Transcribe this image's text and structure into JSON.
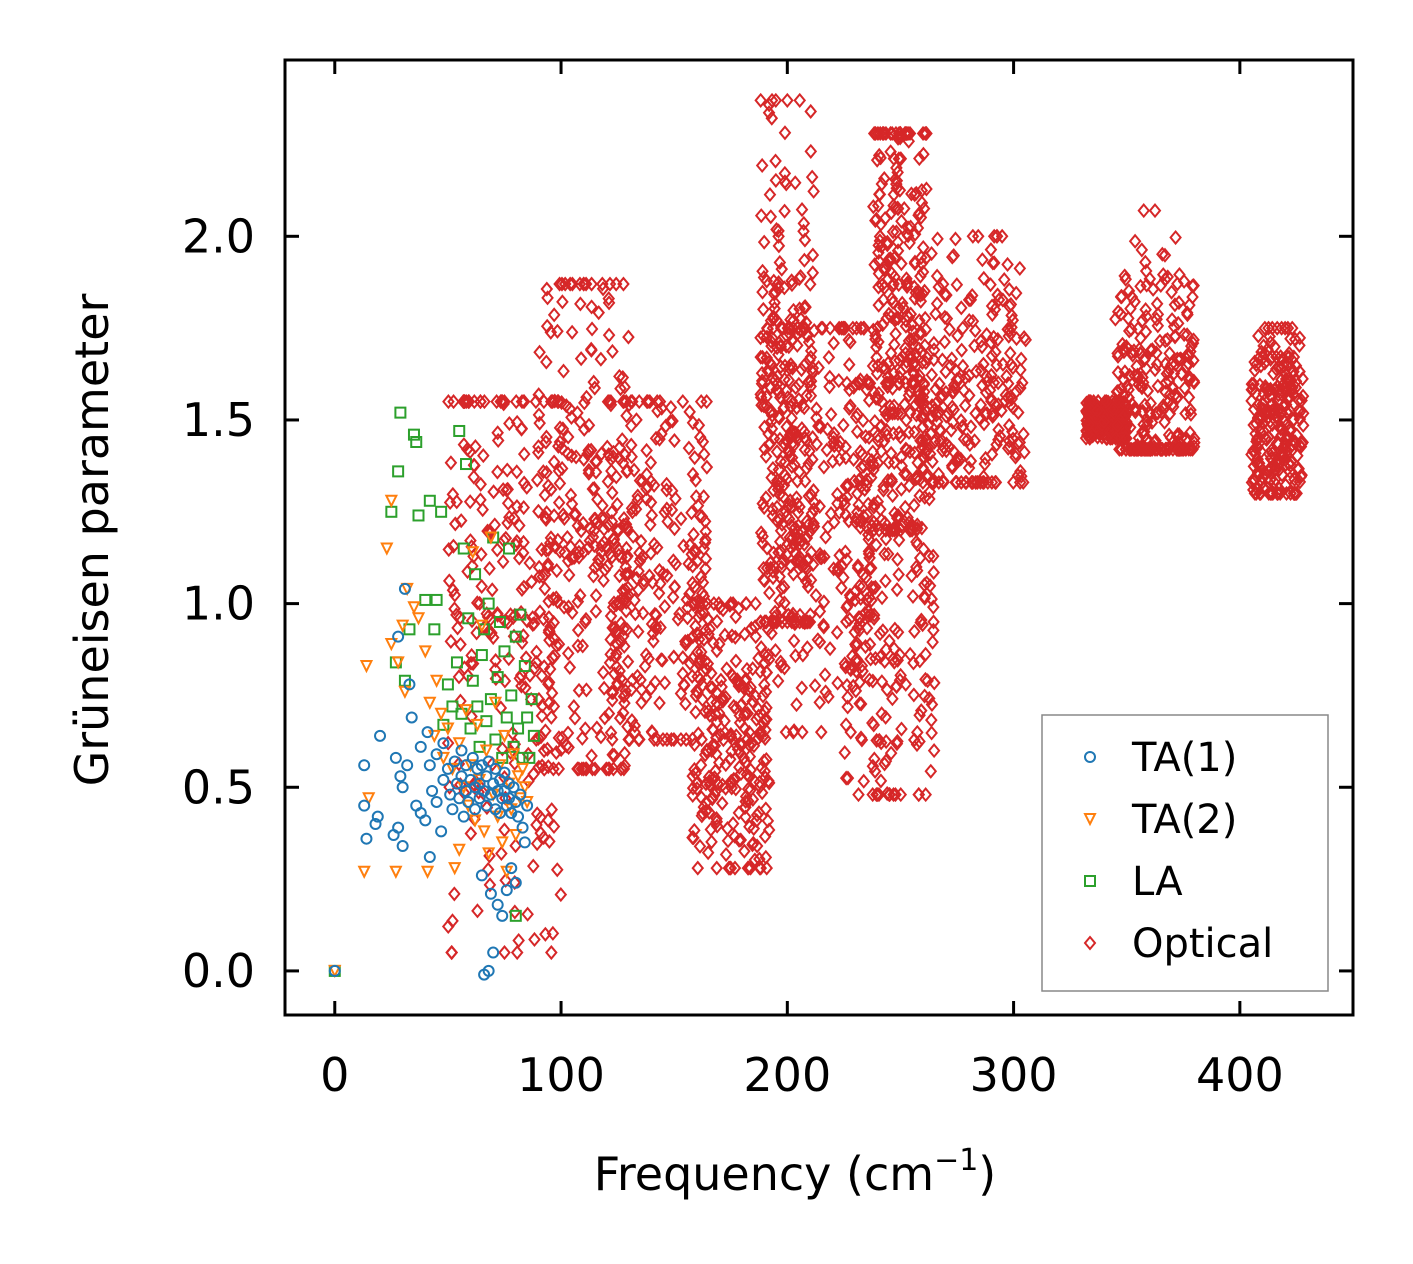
{
  "chart_data": {
    "type": "scatter",
    "xlabel": "Frequency (cm",
    "xlabel_sup": "−1",
    "xlabel_close": ")",
    "ylabel": "Grüneisen parameter",
    "xlim": [
      -22,
      450
    ],
    "ylim": [
      -0.12,
      2.48
    ],
    "xticks": [
      0,
      100,
      200,
      300,
      400
    ],
    "xtick_labels": [
      "0",
      "100",
      "200",
      "300",
      "400"
    ],
    "yticks": [
      0.0,
      0.5,
      1.0,
      1.5,
      2.0
    ],
    "ytick_labels": [
      "0.0",
      "0.5",
      "1.0",
      "1.5",
      "2.0"
    ],
    "legend_position": "lower-right",
    "series": [
      {
        "name": "TA(1)",
        "marker": "circle",
        "color": "#1f77b4",
        "points": [
          [
            0,
            0.0
          ],
          [
            13,
            0.45
          ],
          [
            13,
            0.56
          ],
          [
            14,
            0.36
          ],
          [
            18,
            0.4
          ],
          [
            19,
            0.42
          ],
          [
            20,
            0.64
          ],
          [
            26,
            0.37
          ],
          [
            27,
            0.58
          ],
          [
            28,
            0.39
          ],
          [
            28,
            0.91
          ],
          [
            29,
            0.53
          ],
          [
            30,
            0.34
          ],
          [
            30,
            0.5
          ],
          [
            31,
            1.04
          ],
          [
            32,
            0.56
          ],
          [
            33,
            0.78
          ],
          [
            34,
            0.69
          ],
          [
            36,
            0.45
          ],
          [
            38,
            0.61
          ],
          [
            38,
            0.43
          ],
          [
            40,
            0.41
          ],
          [
            41,
            0.65
          ],
          [
            42,
            0.31
          ],
          [
            42,
            0.56
          ],
          [
            43,
            0.49
          ],
          [
            45,
            0.59
          ],
          [
            45,
            0.46
          ],
          [
            47,
            0.38
          ],
          [
            48,
            0.52
          ],
          [
            48,
            0.62
          ],
          [
            50,
            0.55
          ],
          [
            51,
            0.48
          ],
          [
            52,
            0.44
          ],
          [
            53,
            0.57
          ],
          [
            54,
            0.51
          ],
          [
            55,
            0.47
          ],
          [
            56,
            0.6
          ],
          [
            56,
            0.53
          ],
          [
            57,
            0.42
          ],
          [
            58,
            0.49
          ],
          [
            58,
            0.56
          ],
          [
            59,
            0.46
          ],
          [
            60,
            0.52
          ],
          [
            61,
            0.58
          ],
          [
            62,
            0.5
          ],
          [
            62,
            0.44
          ],
          [
            63,
            0.55
          ],
          [
            64,
            0.47
          ],
          [
            64,
            0.51
          ],
          [
            65,
            0.56
          ],
          [
            65,
            0.26
          ],
          [
            66,
            0.49
          ],
          [
            66,
            -0.01
          ],
          [
            67,
            0.45
          ],
          [
            67,
            0.53
          ],
          [
            68,
            0.0
          ],
          [
            68,
            0.57
          ],
          [
            69,
            0.48
          ],
          [
            69,
            0.21
          ],
          [
            70,
            0.51
          ],
          [
            70,
            0.05
          ],
          [
            71,
            0.44
          ],
          [
            71,
            0.55
          ],
          [
            72,
            0.49
          ],
          [
            72,
            0.18
          ],
          [
            73,
            0.52
          ],
          [
            73,
            0.43
          ],
          [
            74,
            0.47
          ],
          [
            74,
            0.15
          ],
          [
            75,
            0.54
          ],
          [
            75,
            0.49
          ],
          [
            76,
            0.45
          ],
          [
            76,
            0.22
          ],
          [
            77,
            0.51
          ],
          [
            77,
            0.47
          ],
          [
            78,
            0.43
          ],
          [
            78,
            0.28
          ],
          [
            79,
            0.5
          ],
          [
            80,
            0.46
          ],
          [
            80,
            0.24
          ],
          [
            81,
            0.42
          ],
          [
            82,
            0.48
          ],
          [
            83,
            0.39
          ],
          [
            84,
            0.35
          ],
          [
            85,
            0.45
          ]
        ]
      },
      {
        "name": "TA(2)",
        "marker": "triangle-down",
        "color": "#ff7f0e",
        "points": [
          [
            0,
            0.0
          ],
          [
            13,
            0.27
          ],
          [
            14,
            0.83
          ],
          [
            15,
            0.47
          ],
          [
            23,
            1.15
          ],
          [
            25,
            1.28
          ],
          [
            25,
            0.89
          ],
          [
            27,
            0.27
          ],
          [
            28,
            0.84
          ],
          [
            30,
            0.94
          ],
          [
            31,
            0.76
          ],
          [
            32,
            1.04
          ],
          [
            35,
            0.99
          ],
          [
            37,
            0.96
          ],
          [
            40,
            0.87
          ],
          [
            41,
            0.27
          ],
          [
            42,
            0.73
          ],
          [
            44,
            0.64
          ],
          [
            45,
            0.79
          ],
          [
            47,
            0.7
          ],
          [
            48,
            0.58
          ],
          [
            50,
            0.66
          ],
          [
            52,
            0.55
          ],
          [
            53,
            0.28
          ],
          [
            55,
            0.62
          ],
          [
            55,
            0.33
          ],
          [
            57,
            0.5
          ],
          [
            58,
            0.71
          ],
          [
            59,
            0.45
          ],
          [
            60,
            0.56
          ],
          [
            61,
            1.14
          ],
          [
            62,
            0.41
          ],
          [
            63,
            0.67
          ],
          [
            64,
            0.52
          ],
          [
            65,
            0.94
          ],
          [
            66,
            0.38
          ],
          [
            67,
            0.6
          ],
          [
            68,
            0.32
          ],
          [
            69,
            1.18
          ],
          [
            70,
            0.48
          ],
          [
            71,
            0.73
          ],
          [
            72,
            0.42
          ],
          [
            73,
            0.56
          ],
          [
            74,
            0.35
          ],
          [
            75,
            0.64
          ],
          [
            76,
            0.27
          ],
          [
            77,
            0.51
          ],
          [
            78,
            0.44
          ],
          [
            79,
            0.59
          ],
          [
            80,
            0.37
          ],
          [
            81,
            0.53
          ],
          [
            82,
            0.47
          ],
          [
            83,
            0.55
          ],
          [
            84,
            0.5
          ],
          [
            85,
            0.46
          ]
        ]
      },
      {
        "name": "LA",
        "marker": "square",
        "color": "#2ca02c",
        "points": [
          [
            0,
            0.0
          ],
          [
            25,
            1.25
          ],
          [
            27,
            0.84
          ],
          [
            28,
            1.36
          ],
          [
            29,
            1.52
          ],
          [
            31,
            0.79
          ],
          [
            33,
            0.93
          ],
          [
            35,
            1.46
          ],
          [
            36,
            1.44
          ],
          [
            37,
            1.24
          ],
          [
            40,
            1.01
          ],
          [
            42,
            1.28
          ],
          [
            44,
            0.93
          ],
          [
            45,
            1.01
          ],
          [
            47,
            1.25
          ],
          [
            48,
            0.67
          ],
          [
            50,
            0.78
          ],
          [
            52,
            0.72
          ],
          [
            54,
            0.84
          ],
          [
            55,
            1.47
          ],
          [
            56,
            0.7
          ],
          [
            57,
            1.15
          ],
          [
            58,
            1.38
          ],
          [
            59,
            0.96
          ],
          [
            60,
            0.66
          ],
          [
            61,
            0.79
          ],
          [
            62,
            1.08
          ],
          [
            63,
            0.72
          ],
          [
            64,
            0.61
          ],
          [
            65,
            0.86
          ],
          [
            66,
            0.93
          ],
          [
            67,
            0.68
          ],
          [
            68,
            1.0
          ],
          [
            69,
            0.74
          ],
          [
            70,
            1.18
          ],
          [
            71,
            0.63
          ],
          [
            72,
            0.8
          ],
          [
            73,
            0.95
          ],
          [
            74,
            0.58
          ],
          [
            75,
            0.87
          ],
          [
            76,
            0.69
          ],
          [
            77,
            1.15
          ],
          [
            78,
            0.75
          ],
          [
            79,
            0.61
          ],
          [
            80,
            0.91
          ],
          [
            80,
            0.15
          ],
          [
            81,
            0.66
          ],
          [
            82,
            0.97
          ],
          [
            83,
            0.58
          ],
          [
            84,
            0.83
          ],
          [
            85,
            0.69
          ],
          [
            86,
            0.58
          ],
          [
            87,
            0.74
          ],
          [
            88,
            0.64
          ]
        ]
      },
      {
        "name": "Optical",
        "marker": "diamond",
        "color": "#d62728",
        "clusters": [
          {
            "x_range": [
              50,
              100
            ],
            "y_range": [
              0.05,
              1.55
            ],
            "peak": 1.0
          },
          {
            "x_range": [
              90,
              130
            ],
            "y_range": [
              0.55,
              1.87
            ],
            "peak": 1.15
          },
          {
            "x_range": [
              120,
              165
            ],
            "y_range": [
              0.63,
              1.55
            ],
            "peak": 1.1
          },
          {
            "x_range": [
              158,
              192
            ],
            "y_range": [
              0.28,
              1.0
            ],
            "peak": 0.65
          },
          {
            "x_range": [
              188,
              212
            ],
            "y_range": [
              0.95,
              2.37
            ],
            "peak": 1.5
          },
          {
            "x_range": [
              190,
              240
            ],
            "y_range": [
              0.65,
              1.75
            ],
            "peak": 1.3
          },
          {
            "x_range": [
              225,
              265
            ],
            "y_range": [
              0.48,
              1.6
            ],
            "peak": 1.05
          },
          {
            "x_range": [
              238,
              262
            ],
            "y_range": [
              1.2,
              2.28
            ],
            "peak": 1.8
          },
          {
            "x_range": [
              258,
              306
            ],
            "y_range": [
              1.33,
              2.0
            ],
            "peak": 1.6
          },
          {
            "x_range": [
              332,
              350
            ],
            "y_range": [
              1.45,
              1.55
            ],
            "peak": 1.5
          },
          {
            "x_range": [
              345,
              380
            ],
            "y_range": [
              1.42,
              2.07
            ],
            "peak": 1.6
          },
          {
            "x_range": [
              405,
              428
            ],
            "y_range": [
              1.3,
              1.75
            ],
            "peak": 1.5
          }
        ]
      }
    ]
  }
}
